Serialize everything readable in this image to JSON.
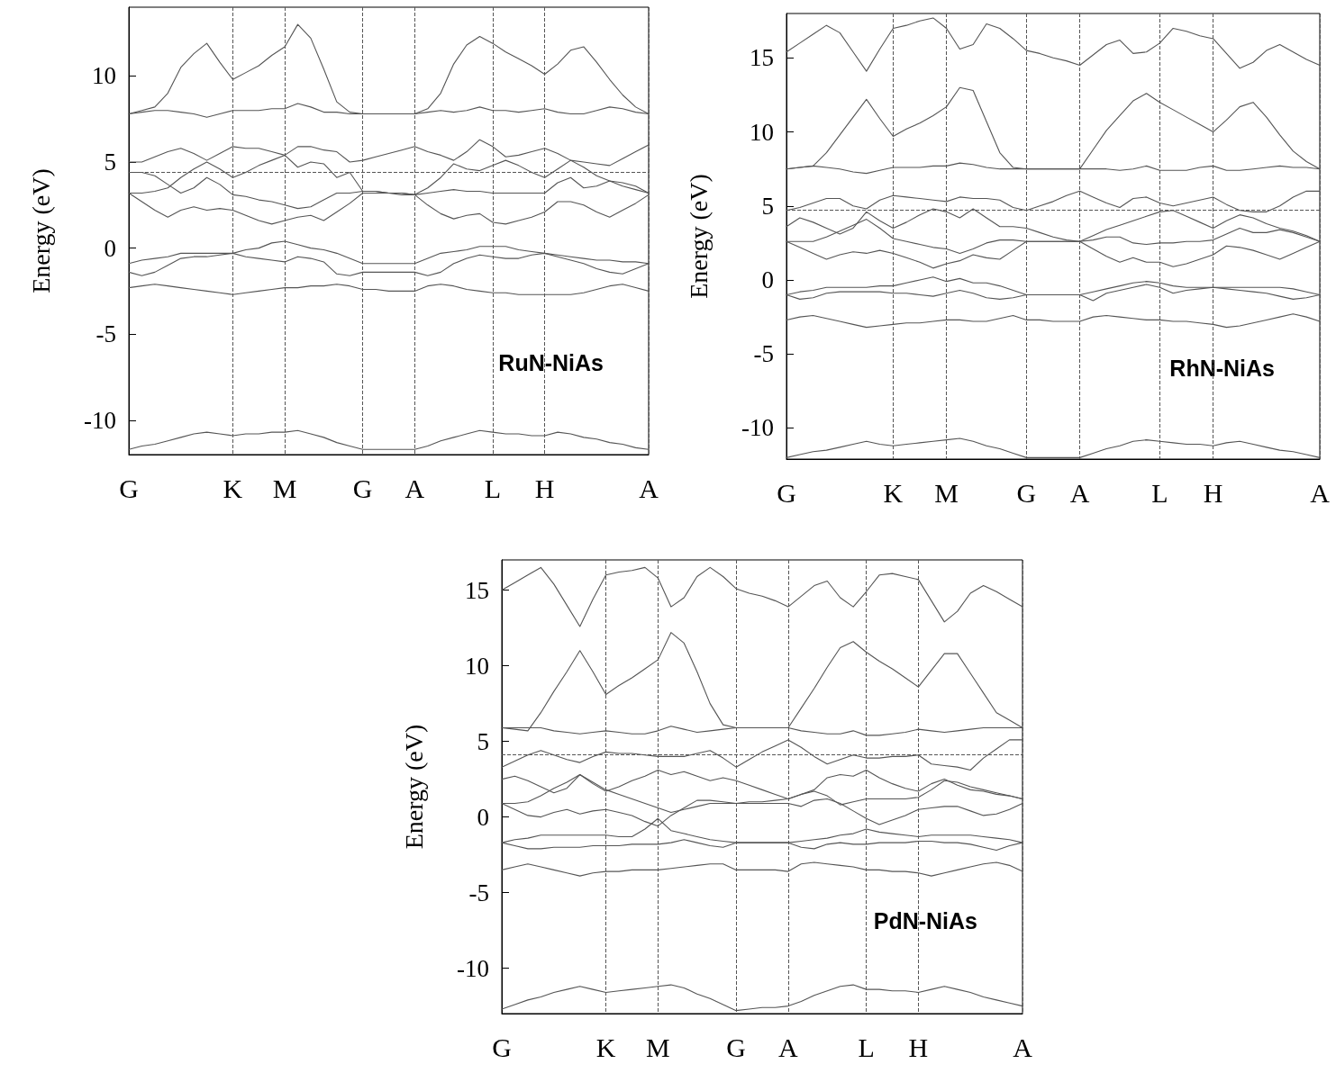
{
  "chart_data": [
    {
      "type": "line",
      "ylabel": "Energy (eV)",
      "annotations": [
        "RuN-NiAs"
      ],
      "marker": "none",
      "line_style": "solid",
      "grid": "x",
      "categories": [
        "G",
        null,
        null,
        null,
        null,
        null,
        null,
        null,
        "K",
        null,
        null,
        null,
        "M",
        null,
        null,
        null,
        null,
        null,
        "G",
        null,
        null,
        null,
        "A",
        null,
        null,
        null,
        null,
        null,
        "L",
        null,
        null,
        null,
        "H",
        null,
        null,
        null,
        null,
        null,
        null,
        null,
        "A"
      ],
      "ylim": [
        -12,
        14
      ],
      "yticks": [
        -10,
        -5,
        0,
        5,
        10
      ],
      "ref_lines": [
        {
          "axis": "y",
          "value": 4.4,
          "line_style": "dashed"
        }
      ],
      "series": [
        {
          "color": "#555555",
          "values": [
            7.8,
            8.0,
            8.2,
            9.0,
            10.5,
            11.3,
            11.9,
            10.8,
            9.8,
            10.2,
            10.6,
            11.2,
            11.7,
            13.0,
            12.2,
            10.4,
            8.5,
            7.9,
            7.8,
            7.8,
            7.8,
            7.8,
            7.8,
            8.1,
            9.0,
            10.7,
            11.8,
            12.3,
            11.9,
            11.4,
            11.0,
            10.6,
            10.1,
            10.7,
            11.5,
            11.7,
            10.8,
            9.8,
            8.9,
            8.2,
            7.8
          ]
        },
        {
          "color": "#555555",
          "values": [
            7.8,
            7.9,
            8.0,
            8.0,
            7.9,
            7.8,
            7.6,
            7.8,
            8.0,
            8.0,
            8.0,
            8.1,
            8.1,
            8.4,
            8.2,
            7.9,
            7.9,
            7.8,
            7.8,
            7.8,
            7.8,
            7.8,
            7.8,
            7.9,
            8.0,
            7.9,
            8.0,
            8.2,
            8.0,
            8.0,
            7.9,
            8.0,
            8.1,
            7.9,
            7.8,
            7.8,
            8.0,
            8.2,
            8.1,
            7.9,
            7.8
          ]
        },
        {
          "color": "#555555",
          "values": [
            5.0,
            5.0,
            5.3,
            5.6,
            5.8,
            5.5,
            5.1,
            5.5,
            5.9,
            5.8,
            5.8,
            5.6,
            5.4,
            5.9,
            5.9,
            5.7,
            5.6,
            5.0,
            5.1,
            5.3,
            5.5,
            5.7,
            5.9,
            5.6,
            5.4,
            5.1,
            5.6,
            6.3,
            5.9,
            5.3,
            5.4,
            5.6,
            5.8,
            5.5,
            5.1,
            5.0,
            4.9,
            4.8,
            5.2,
            5.6,
            6.0
          ]
        },
        {
          "color": "#555555",
          "values": [
            3.2,
            3.2,
            3.3,
            3.5,
            4.1,
            4.6,
            5.0,
            4.6,
            4.1,
            4.4,
            4.8,
            5.1,
            5.4,
            4.7,
            5.0,
            4.9,
            4.1,
            4.4,
            3.3,
            3.3,
            3.2,
            3.2,
            3.1,
            3.5,
            4.1,
            4.9,
            4.6,
            4.5,
            4.8,
            5.1,
            4.8,
            4.4,
            4.1,
            4.6,
            5.1,
            4.7,
            4.2,
            3.9,
            3.6,
            3.4,
            3.2
          ]
        },
        {
          "color": "#555555",
          "values": [
            4.4,
            4.4,
            4.2,
            3.7,
            3.2,
            3.5,
            4.1,
            3.7,
            3.1,
            3.0,
            2.8,
            2.7,
            2.5,
            2.3,
            2.4,
            2.8,
            3.2,
            3.2,
            3.3,
            3.3,
            3.2,
            3.2,
            3.1,
            3.2,
            3.3,
            3.4,
            3.3,
            3.3,
            3.2,
            3.2,
            3.2,
            3.2,
            3.2,
            3.8,
            4.1,
            3.5,
            3.6,
            3.9,
            3.8,
            3.6,
            3.2
          ]
        },
        {
          "color": "#555555",
          "values": [
            3.2,
            2.7,
            2.2,
            1.8,
            2.2,
            2.4,
            2.2,
            2.3,
            2.2,
            1.9,
            1.6,
            1.4,
            1.6,
            1.8,
            1.9,
            1.6,
            2.1,
            2.6,
            3.2,
            3.2,
            3.2,
            3.1,
            3.1,
            2.5,
            2.0,
            1.7,
            1.9,
            2.0,
            1.5,
            1.4,
            1.6,
            1.8,
            2.1,
            2.7,
            2.7,
            2.5,
            2.1,
            1.8,
            2.2,
            2.6,
            3.1
          ]
        },
        {
          "color": "#555555",
          "values": [
            -0.9,
            -0.7,
            -0.6,
            -0.5,
            -0.3,
            -0.3,
            -0.3,
            -0.3,
            -0.3,
            -0.1,
            0.0,
            0.3,
            0.4,
            0.2,
            0.0,
            -0.1,
            -0.3,
            -0.6,
            -0.9,
            -0.9,
            -0.9,
            -0.9,
            -0.9,
            -0.6,
            -0.3,
            -0.2,
            -0.1,
            0.1,
            0.1,
            0.1,
            -0.1,
            -0.2,
            -0.3,
            -0.4,
            -0.5,
            -0.6,
            -0.7,
            -0.7,
            -0.8,
            -0.8,
            -0.9
          ]
        },
        {
          "color": "#555555",
          "values": [
            -1.4,
            -1.6,
            -1.4,
            -1.0,
            -0.6,
            -0.5,
            -0.5,
            -0.4,
            -0.3,
            -0.5,
            -0.6,
            -0.7,
            -0.8,
            -0.5,
            -0.6,
            -0.8,
            -1.5,
            -1.6,
            -1.4,
            -1.4,
            -1.4,
            -1.4,
            -1.4,
            -1.6,
            -1.4,
            -0.9,
            -0.6,
            -0.4,
            -0.5,
            -0.6,
            -0.6,
            -0.4,
            -0.3,
            -0.5,
            -0.7,
            -0.9,
            -1.2,
            -1.4,
            -1.5,
            -1.2,
            -0.9
          ]
        },
        {
          "color": "#555555",
          "values": [
            -2.3,
            -2.2,
            -2.1,
            -2.2,
            -2.3,
            -2.4,
            -2.5,
            -2.6,
            -2.7,
            -2.6,
            -2.5,
            -2.4,
            -2.3,
            -2.3,
            -2.2,
            -2.2,
            -2.1,
            -2.2,
            -2.4,
            -2.4,
            -2.5,
            -2.5,
            -2.5,
            -2.2,
            -2.1,
            -2.2,
            -2.4,
            -2.5,
            -2.6,
            -2.6,
            -2.7,
            -2.7,
            -2.7,
            -2.7,
            -2.7,
            -2.6,
            -2.4,
            -2.2,
            -2.1,
            -2.3,
            -2.5
          ]
        },
        {
          "color": "#555555",
          "values": [
            -11.7,
            -11.5,
            -11.4,
            -11.2,
            -11.0,
            -10.8,
            -10.7,
            -10.8,
            -10.9,
            -10.8,
            -10.8,
            -10.7,
            -10.7,
            -10.6,
            -10.8,
            -11.0,
            -11.3,
            -11.5,
            -11.7,
            -11.7,
            -11.7,
            -11.7,
            -11.7,
            -11.5,
            -11.2,
            -11.0,
            -10.8,
            -10.6,
            -10.7,
            -10.8,
            -10.8,
            -10.9,
            -10.9,
            -10.7,
            -10.8,
            -11.0,
            -11.1,
            -11.3,
            -11.4,
            -11.6,
            -11.7
          ]
        }
      ]
    },
    {
      "type": "line",
      "ylabel": "Energy (eV)",
      "annotations": [
        "RhN-NiAs"
      ],
      "marker": "none",
      "line_style": "solid",
      "grid": "x",
      "categories": [
        "G",
        null,
        null,
        null,
        null,
        null,
        null,
        null,
        "K",
        null,
        null,
        null,
        "M",
        null,
        null,
        null,
        null,
        null,
        "G",
        null,
        null,
        null,
        "A",
        null,
        null,
        null,
        null,
        null,
        "L",
        null,
        null,
        null,
        "H",
        null,
        null,
        null,
        null,
        null,
        null,
        null,
        "A"
      ],
      "ylim": [
        -12.1,
        18
      ],
      "yticks": [
        -10,
        -5,
        0,
        5,
        10,
        15
      ],
      "ref_lines": [
        {
          "axis": "y",
          "value": 4.7,
          "line_style": "dashed"
        }
      ],
      "series": [
        {
          "color": "#555555",
          "values": [
            15.4,
            16.0,
            16.6,
            17.2,
            16.7,
            15.4,
            14.1,
            15.6,
            17.0,
            17.2,
            17.5,
            17.7,
            17.0,
            15.6,
            15.9,
            17.3,
            17.0,
            16.3,
            15.5,
            15.3,
            15.0,
            14.8,
            14.5,
            15.2,
            15.9,
            16.2,
            15.3,
            15.4,
            16.0,
            17.0,
            16.8,
            16.5,
            16.3,
            15.3,
            14.3,
            14.7,
            15.5,
            15.9,
            15.4,
            14.9,
            14.5
          ]
        },
        {
          "color": "#555555",
          "values": [
            7.5,
            7.6,
            7.7,
            8.6,
            9.8,
            11.0,
            12.2,
            10.9,
            9.7,
            10.2,
            10.6,
            11.1,
            11.7,
            13.0,
            12.8,
            10.7,
            8.6,
            7.6,
            7.5,
            7.5,
            7.5,
            7.5,
            7.5,
            8.8,
            10.1,
            11.1,
            12.1,
            12.6,
            12.0,
            11.5,
            11.0,
            10.5,
            10.0,
            10.8,
            11.7,
            12.0,
            11.0,
            9.8,
            8.7,
            8.0,
            7.5
          ]
        },
        {
          "color": "#555555",
          "values": [
            7.5,
            7.6,
            7.7,
            7.6,
            7.5,
            7.3,
            7.2,
            7.4,
            7.6,
            7.6,
            7.6,
            7.7,
            7.7,
            7.9,
            7.8,
            7.6,
            7.5,
            7.5,
            7.5,
            7.5,
            7.5,
            7.5,
            7.5,
            7.5,
            7.5,
            7.4,
            7.5,
            7.7,
            7.4,
            7.4,
            7.4,
            7.6,
            7.7,
            7.4,
            7.4,
            7.5,
            7.6,
            7.7,
            7.6,
            7.6,
            7.5
          ]
        },
        {
          "color": "#555555",
          "values": [
            4.7,
            4.9,
            5.2,
            5.5,
            5.5,
            5.0,
            4.8,
            5.4,
            5.7,
            5.6,
            5.5,
            5.4,
            5.3,
            5.6,
            5.5,
            5.5,
            5.4,
            4.9,
            4.7,
            5.0,
            5.3,
            5.7,
            6.0,
            5.6,
            5.2,
            4.9,
            5.5,
            5.6,
            5.2,
            5.0,
            5.2,
            5.4,
            5.6,
            5.1,
            4.7,
            4.6,
            4.6,
            5.0,
            5.6,
            6.0,
            6.0
          ]
        },
        {
          "color": "#555555",
          "values": [
            3.6,
            4.2,
            3.9,
            3.5,
            3.1,
            3.5,
            4.6,
            4.0,
            3.5,
            3.9,
            4.4,
            4.8,
            4.6,
            4.2,
            4.8,
            4.2,
            3.6,
            3.6,
            3.5,
            3.2,
            2.9,
            2.7,
            2.6,
            3.0,
            3.4,
            3.7,
            4.0,
            4.3,
            4.6,
            4.7,
            4.3,
            3.9,
            3.5,
            4.0,
            4.4,
            4.2,
            3.8,
            3.5,
            3.3,
            3.0,
            2.6
          ]
        },
        {
          "color": "#555555",
          "values": [
            2.6,
            2.6,
            2.6,
            2.9,
            3.3,
            3.7,
            4.1,
            3.5,
            2.8,
            2.6,
            2.4,
            2.2,
            2.1,
            1.8,
            2.1,
            2.5,
            2.7,
            2.7,
            2.6,
            2.6,
            2.6,
            2.6,
            2.6,
            2.7,
            2.9,
            2.9,
            2.5,
            2.4,
            2.5,
            2.5,
            2.6,
            2.6,
            2.7,
            3.1,
            3.5,
            3.2,
            3.2,
            3.4,
            3.2,
            2.9,
            2.6
          ]
        },
        {
          "color": "#555555",
          "values": [
            2.6,
            2.2,
            1.8,
            1.4,
            1.7,
            1.9,
            1.8,
            2.0,
            1.8,
            1.5,
            1.2,
            0.8,
            1.1,
            1.3,
            1.7,
            1.5,
            1.4,
            2.0,
            2.6,
            2.6,
            2.6,
            2.6,
            2.6,
            2.1,
            1.6,
            1.2,
            1.5,
            1.2,
            1.2,
            0.9,
            1.1,
            1.4,
            1.7,
            2.3,
            2.2,
            2.0,
            1.7,
            1.4,
            1.8,
            2.2,
            2.6
          ]
        },
        {
          "color": "#555555",
          "values": [
            -1.0,
            -0.8,
            -0.7,
            -0.5,
            -0.5,
            -0.5,
            -0.5,
            -0.4,
            -0.4,
            -0.2,
            0.0,
            0.2,
            -0.1,
            0.1,
            -0.2,
            -0.2,
            -0.4,
            -0.7,
            -1.0,
            -1.0,
            -1.0,
            -1.0,
            -1.0,
            -0.8,
            -0.6,
            -0.4,
            -0.2,
            -0.1,
            -0.2,
            -0.4,
            -0.5,
            -0.5,
            -0.5,
            -0.5,
            -0.5,
            -0.5,
            -0.5,
            -0.5,
            -0.6,
            -0.8,
            -1.0
          ]
        },
        {
          "color": "#555555",
          "values": [
            -1.0,
            -1.3,
            -1.2,
            -0.9,
            -0.8,
            -0.8,
            -0.8,
            -0.8,
            -0.9,
            -0.9,
            -1.0,
            -1.1,
            -0.9,
            -0.7,
            -0.9,
            -1.2,
            -1.3,
            -1.2,
            -1.0,
            -1.0,
            -1.0,
            -1.0,
            -1.0,
            -1.4,
            -0.9,
            -0.7,
            -0.5,
            -0.3,
            -0.5,
            -0.9,
            -0.7,
            -0.6,
            -0.5,
            -0.6,
            -0.7,
            -0.8,
            -0.9,
            -1.1,
            -1.3,
            -1.2,
            -1.0
          ]
        },
        {
          "color": "#555555",
          "values": [
            -2.7,
            -2.5,
            -2.4,
            -2.6,
            -2.8,
            -3.0,
            -3.2,
            -3.1,
            -3.0,
            -2.9,
            -2.9,
            -2.8,
            -2.7,
            -2.7,
            -2.8,
            -2.8,
            -2.6,
            -2.4,
            -2.7,
            -2.7,
            -2.8,
            -2.8,
            -2.8,
            -2.5,
            -2.4,
            -2.5,
            -2.6,
            -2.7,
            -2.7,
            -2.8,
            -2.8,
            -2.9,
            -3.0,
            -3.2,
            -3.1,
            -2.9,
            -2.7,
            -2.5,
            -2.3,
            -2.5,
            -2.8
          ]
        },
        {
          "color": "#555555",
          "values": [
            -12.0,
            -11.8,
            -11.6,
            -11.5,
            -11.3,
            -11.1,
            -10.9,
            -11.1,
            -11.2,
            -11.1,
            -11.0,
            -10.9,
            -10.8,
            -10.7,
            -10.9,
            -11.2,
            -11.4,
            -11.7,
            -12.0,
            -12.0,
            -12.0,
            -12.0,
            -12.0,
            -11.7,
            -11.4,
            -11.2,
            -10.9,
            -10.8,
            -10.9,
            -11.0,
            -11.1,
            -11.1,
            -11.2,
            -11.0,
            -10.9,
            -11.1,
            -11.3,
            -11.5,
            -11.6,
            -11.8,
            -12.0
          ]
        }
      ]
    },
    {
      "type": "line",
      "ylabel": "Energy (eV)",
      "annotations": [
        "PdN-NiAs"
      ],
      "marker": "none",
      "line_style": "solid",
      "grid": "x",
      "categories": [
        "G",
        null,
        null,
        null,
        null,
        null,
        null,
        null,
        "K",
        null,
        null,
        null,
        "M",
        null,
        null,
        null,
        null,
        null,
        "G",
        null,
        null,
        null,
        "A",
        null,
        null,
        null,
        null,
        null,
        "L",
        null,
        null,
        null,
        "H",
        null,
        null,
        null,
        null,
        null,
        null,
        null,
        "A"
      ],
      "ylim": [
        -13,
        17
      ],
      "yticks": [
        -10,
        -5,
        0,
        5,
        10,
        15
      ],
      "ref_lines": [
        {
          "axis": "y",
          "value": 4.1,
          "line_style": "dashed"
        }
      ],
      "series": [
        {
          "color": "#555555",
          "values": [
            15.0,
            15.5,
            16.0,
            16.5,
            15.4,
            14.0,
            12.6,
            14.4,
            16.0,
            16.2,
            16.3,
            16.5,
            15.8,
            13.9,
            14.5,
            15.9,
            16.5,
            15.9,
            15.1,
            14.8,
            14.6,
            14.3,
            13.9,
            14.6,
            15.3,
            15.6,
            14.5,
            13.9,
            14.9,
            16.0,
            16.1,
            15.9,
            15.7,
            14.3,
            12.9,
            13.6,
            14.8,
            15.3,
            14.9,
            14.4,
            13.9
          ]
        },
        {
          "color": "#555555",
          "values": [
            5.9,
            5.8,
            5.7,
            6.9,
            8.3,
            9.6,
            11.0,
            9.6,
            8.1,
            8.7,
            9.2,
            9.8,
            10.4,
            12.2,
            11.5,
            9.6,
            7.5,
            6.1,
            5.9,
            5.9,
            5.9,
            5.9,
            5.9,
            7.2,
            8.5,
            9.9,
            11.2,
            11.6,
            10.9,
            10.3,
            9.8,
            9.2,
            8.6,
            9.7,
            10.8,
            10.8,
            9.5,
            8.2,
            6.9,
            6.4,
            5.9
          ]
        },
        {
          "color": "#555555",
          "values": [
            5.9,
            5.9,
            5.9,
            5.9,
            5.7,
            5.6,
            5.5,
            5.6,
            5.7,
            5.6,
            5.5,
            5.5,
            5.7,
            6.0,
            5.8,
            5.6,
            5.7,
            5.8,
            5.9,
            5.9,
            5.9,
            5.9,
            5.9,
            5.7,
            5.6,
            5.5,
            5.5,
            5.7,
            5.4,
            5.4,
            5.5,
            5.6,
            5.8,
            5.7,
            5.6,
            5.7,
            5.8,
            5.9,
            5.9,
            5.9,
            5.9
          ]
        },
        {
          "color": "#555555",
          "values": [
            3.3,
            3.7,
            4.1,
            4.4,
            4.1,
            3.8,
            3.6,
            4.0,
            4.3,
            4.2,
            4.2,
            4.1,
            4.0,
            4.0,
            4.0,
            4.2,
            4.4,
            3.9,
            3.3,
            3.8,
            4.3,
            4.7,
            5.1,
            4.6,
            4.0,
            3.5,
            3.8,
            4.1,
            3.9,
            3.9,
            4.0,
            4.0,
            4.1,
            3.5,
            3.4,
            3.3,
            3.1,
            3.9,
            4.5,
            5.1,
            5.1
          ]
        },
        {
          "color": "#555555",
          "values": [
            2.5,
            2.7,
            2.4,
            2.0,
            1.6,
            1.9,
            2.8,
            2.2,
            1.7,
            2.0,
            2.4,
            2.7,
            3.1,
            2.8,
            3.0,
            2.7,
            2.4,
            2.6,
            2.4,
            2.1,
            1.8,
            1.5,
            1.2,
            1.5,
            1.8,
            2.6,
            2.8,
            2.7,
            3.1,
            2.6,
            2.2,
            1.9,
            1.7,
            2.2,
            2.5,
            2.1,
            1.8,
            1.7,
            1.5,
            1.4,
            1.2
          ]
        },
        {
          "color": "#555555",
          "values": [
            0.9,
            0.9,
            1.0,
            1.4,
            1.9,
            2.3,
            2.8,
            2.3,
            1.8,
            1.5,
            1.2,
            0.9,
            0.6,
            0.3,
            0.5,
            0.7,
            0.9,
            0.9,
            0.9,
            1.0,
            1.0,
            1.1,
            1.2,
            1.5,
            1.7,
            1.4,
            0.8,
            1.0,
            1.2,
            1.2,
            1.2,
            1.2,
            1.3,
            1.8,
            2.4,
            2.3,
            2.0,
            1.8,
            1.6,
            1.4,
            1.2
          ]
        },
        {
          "color": "#555555",
          "values": [
            0.9,
            0.5,
            0.1,
            0.0,
            0.3,
            0.5,
            0.2,
            0.4,
            0.5,
            0.3,
            0.1,
            -0.3,
            -0.6,
            0.1,
            0.6,
            1.1,
            1.1,
            1.0,
            0.9,
            0.9,
            0.9,
            0.9,
            0.9,
            0.7,
            1.1,
            1.2,
            0.9,
            0.4,
            -0.1,
            -0.5,
            -0.2,
            0.1,
            0.5,
            0.6,
            0.7,
            0.7,
            0.4,
            0.1,
            0.2,
            0.5,
            0.9
          ]
        },
        {
          "color": "#555555",
          "values": [
            -1.7,
            -1.5,
            -1.4,
            -1.2,
            -1.2,
            -1.2,
            -1.2,
            -1.2,
            -1.2,
            -1.3,
            -1.3,
            -0.8,
            -0.1,
            -0.9,
            -1.1,
            -1.3,
            -1.5,
            -1.6,
            -1.7,
            -1.7,
            -1.7,
            -1.7,
            -1.7,
            -1.6,
            -1.5,
            -1.4,
            -1.2,
            -1.1,
            -0.8,
            -1.0,
            -1.1,
            -1.2,
            -1.3,
            -1.2,
            -1.2,
            -1.2,
            -1.2,
            -1.3,
            -1.4,
            -1.5,
            -1.7
          ]
        },
        {
          "color": "#555555",
          "values": [
            -1.7,
            -1.9,
            -2.1,
            -2.1,
            -2.0,
            -2.0,
            -2.0,
            -1.9,
            -1.9,
            -1.9,
            -1.8,
            -1.8,
            -1.8,
            -1.7,
            -1.5,
            -1.7,
            -1.9,
            -2.0,
            -1.7,
            -1.7,
            -1.7,
            -1.7,
            -1.7,
            -2.0,
            -2.1,
            -1.8,
            -1.7,
            -1.8,
            -1.8,
            -1.7,
            -1.7,
            -1.7,
            -1.6,
            -1.6,
            -1.7,
            -1.7,
            -1.8,
            -2.0,
            -2.2,
            -1.9,
            -1.7
          ]
        },
        {
          "color": "#555555",
          "values": [
            -3.5,
            -3.3,
            -3.1,
            -3.3,
            -3.5,
            -3.7,
            -3.9,
            -3.7,
            -3.6,
            -3.6,
            -3.5,
            -3.5,
            -3.5,
            -3.4,
            -3.3,
            -3.2,
            -3.1,
            -3.1,
            -3.5,
            -3.5,
            -3.5,
            -3.5,
            -3.6,
            -3.1,
            -3.0,
            -3.1,
            -3.2,
            -3.3,
            -3.5,
            -3.5,
            -3.6,
            -3.6,
            -3.7,
            -3.9,
            -3.7,
            -3.5,
            -3.3,
            -3.1,
            -3.0,
            -3.2,
            -3.6
          ]
        },
        {
          "color": "#555555",
          "values": [
            -12.7,
            -12.4,
            -12.1,
            -11.9,
            -11.6,
            -11.4,
            -11.2,
            -11.4,
            -11.6,
            -11.5,
            -11.4,
            -11.3,
            -11.2,
            -11.1,
            -11.3,
            -11.7,
            -12.0,
            -12.4,
            -12.8,
            -12.7,
            -12.6,
            -12.6,
            -12.5,
            -12.2,
            -11.8,
            -11.5,
            -11.2,
            -11.1,
            -11.4,
            -11.4,
            -11.5,
            -11.5,
            -11.6,
            -11.4,
            -11.2,
            -11.4,
            -11.6,
            -11.9,
            -12.1,
            -12.3,
            -12.5
          ]
        }
      ]
    }
  ]
}
